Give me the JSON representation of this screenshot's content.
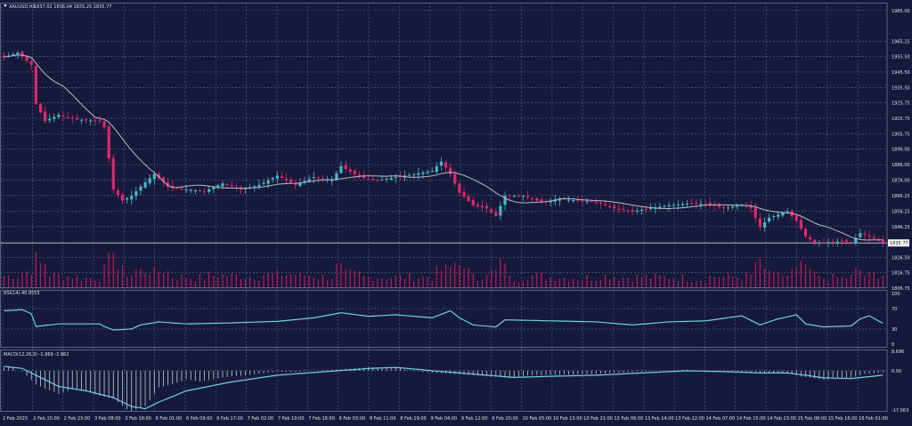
{
  "colors": {
    "background": "#161a3a",
    "grid": "#5c6183",
    "bull": "#47b8c9",
    "bear": "#e0266e",
    "ma": "#b8b8c4",
    "volume": "#c2185b",
    "indicator": "#6ed0e0",
    "hist": "#c9c9d9",
    "text": "#e0e0ec",
    "current": "#cfcfdf"
  },
  "header": {
    "symbol": "XAUUSD,H5",
    "ohlc": "1837.02 1838.04 1835.25 1835.77"
  },
  "chart_data": [
    {
      "type": "candlestick",
      "symbol": "XAUUSD,H5",
      "y_ticks": [
        "1985.00",
        "1965.25",
        "1955.50",
        "1945.50",
        "1935.50",
        "1925.75",
        "1915.75",
        "1905.75",
        "1896.00",
        "1886.00",
        "1876.00",
        "1866.25",
        "1856.25",
        "1846.25",
        "1835.77",
        "1826.50",
        "1816.75",
        "1806.75"
      ],
      "current_price": "1835.77",
      "x_ticks": [
        "2 Feb 2023",
        "2 Feb 15:00",
        "2 Feb 23:00",
        "3 Feb 08:00",
        "3 Feb 16:00",
        "6 Feb 01:00",
        "6 Feb 09:00",
        "6 Feb 17:00",
        "7 Feb 02:00",
        "7 Feb 10:00",
        "7 Feb 18:00",
        "8 Feb 03:00",
        "8 Feb 11:00",
        "8 Feb 19:00",
        "9 Feb 04:00",
        "9 Feb 12:00",
        "9 Feb 20:00",
        "10 Feb 05:00",
        "10 Feb 13:00",
        "10 Feb 21:00",
        "13 Feb 06:00",
        "13 Feb 14:00",
        "13 Feb 22:00",
        "14 Feb 07:00",
        "14 Feb 15:00",
        "14 Feb 23:00",
        "15 Feb 08:00",
        "15 Feb 16:00",
        "16 Feb 01:00"
      ],
      "anchors": [
        [
          0,
          1955
        ],
        [
          3,
          1958
        ],
        [
          6,
          1950
        ],
        [
          7,
          1925
        ],
        [
          9,
          1914
        ],
        [
          12,
          1918
        ],
        [
          16,
          1915
        ],
        [
          21,
          1914
        ],
        [
          22,
          1910
        ],
        [
          24,
          1870
        ],
        [
          26,
          1863
        ],
        [
          28,
          1866
        ],
        [
          30,
          1872
        ],
        [
          33,
          1880
        ],
        [
          36,
          1872
        ],
        [
          40,
          1870
        ],
        [
          44,
          1869
        ],
        [
          48,
          1874
        ],
        [
          52,
          1870
        ],
        [
          56,
          1873
        ],
        [
          60,
          1879
        ],
        [
          64,
          1873
        ],
        [
          68,
          1878
        ],
        [
          72,
          1876
        ],
        [
          74,
          1885
        ],
        [
          78,
          1878
        ],
        [
          82,
          1876
        ],
        [
          86,
          1878
        ],
        [
          90,
          1880
        ],
        [
          94,
          1882
        ],
        [
          96,
          1888
        ],
        [
          98,
          1880
        ],
        [
          100,
          1868
        ],
        [
          103,
          1860
        ],
        [
          106,
          1858
        ],
        [
          108,
          1853
        ],
        [
          110,
          1866
        ],
        [
          114,
          1866
        ],
        [
          118,
          1862
        ],
        [
          122,
          1864
        ],
        [
          126,
          1863
        ],
        [
          130,
          1862
        ],
        [
          134,
          1858
        ],
        [
          138,
          1856
        ],
        [
          142,
          1858
        ],
        [
          146,
          1860
        ],
        [
          150,
          1861
        ],
        [
          154,
          1861
        ],
        [
          158,
          1858
        ],
        [
          162,
          1860
        ],
        [
          164,
          1858
        ],
        [
          166,
          1846
        ],
        [
          168,
          1852
        ],
        [
          172,
          1856
        ],
        [
          174,
          1850
        ],
        [
          176,
          1840
        ],
        [
          178,
          1836
        ],
        [
          180,
          1836
        ],
        [
          184,
          1837
        ],
        [
          186,
          1836
        ],
        [
          188,
          1842
        ],
        [
          190,
          1840
        ],
        [
          193,
          1835.77
        ]
      ],
      "candle_count": 194,
      "y_range": [
        1806.75,
        1990
      ]
    },
    {
      "type": "line",
      "name": "RSI(14) 40.9555",
      "levels": [
        "100",
        "70",
        "30",
        "0"
      ],
      "anchors": [
        [
          0,
          66
        ],
        [
          4,
          68
        ],
        [
          6,
          60
        ],
        [
          7,
          35
        ],
        [
          9,
          37
        ],
        [
          12,
          40
        ],
        [
          21,
          40
        ],
        [
          22,
          35
        ],
        [
          24,
          28
        ],
        [
          28,
          30
        ],
        [
          30,
          38
        ],
        [
          34,
          44
        ],
        [
          40,
          40
        ],
        [
          50,
          42
        ],
        [
          60,
          45
        ],
        [
          68,
          52
        ],
        [
          74,
          62
        ],
        [
          80,
          55
        ],
        [
          86,
          58
        ],
        [
          94,
          52
        ],
        [
          98,
          66
        ],
        [
          100,
          52
        ],
        [
          103,
          38
        ],
        [
          108,
          34
        ],
        [
          110,
          48
        ],
        [
          120,
          46
        ],
        [
          130,
          44
        ],
        [
          138,
          38
        ],
        [
          146,
          44
        ],
        [
          154,
          46
        ],
        [
          162,
          56
        ],
        [
          166,
          38
        ],
        [
          170,
          50
        ],
        [
          174,
          58
        ],
        [
          176,
          40
        ],
        [
          180,
          34
        ],
        [
          186,
          36
        ],
        [
          188,
          50
        ],
        [
          190,
          56
        ],
        [
          193,
          41
        ]
      ],
      "y_range": [
        0,
        100
      ]
    },
    {
      "type": "histogram+line",
      "name": "MACD(12,26,9) -1.969 -2.862",
      "levels": [
        "8.696",
        "0.00",
        "-17.563"
      ],
      "anchors": [
        [
          0,
          2
        ],
        [
          4,
          1
        ],
        [
          6,
          -1
        ],
        [
          8,
          -3
        ],
        [
          12,
          -7
        ],
        [
          18,
          -9
        ],
        [
          24,
          -12
        ],
        [
          28,
          -16
        ],
        [
          31,
          -17
        ],
        [
          34,
          -14
        ],
        [
          40,
          -9
        ],
        [
          50,
          -5
        ],
        [
          60,
          -2
        ],
        [
          70,
          -0.5
        ],
        [
          80,
          1
        ],
        [
          86,
          1.5
        ],
        [
          94,
          0
        ],
        [
          100,
          -1
        ],
        [
          106,
          -2
        ],
        [
          112,
          -3
        ],
        [
          120,
          -2.5
        ],
        [
          130,
          -2
        ],
        [
          140,
          -1
        ],
        [
          150,
          0
        ],
        [
          160,
          -0.5
        ],
        [
          166,
          -1
        ],
        [
          172,
          -1
        ],
        [
          176,
          -2
        ],
        [
          180,
          -3.2
        ],
        [
          186,
          -3.5
        ],
        [
          193,
          -2
        ]
      ],
      "y_range": [
        -17.563,
        8.696
      ]
    }
  ]
}
